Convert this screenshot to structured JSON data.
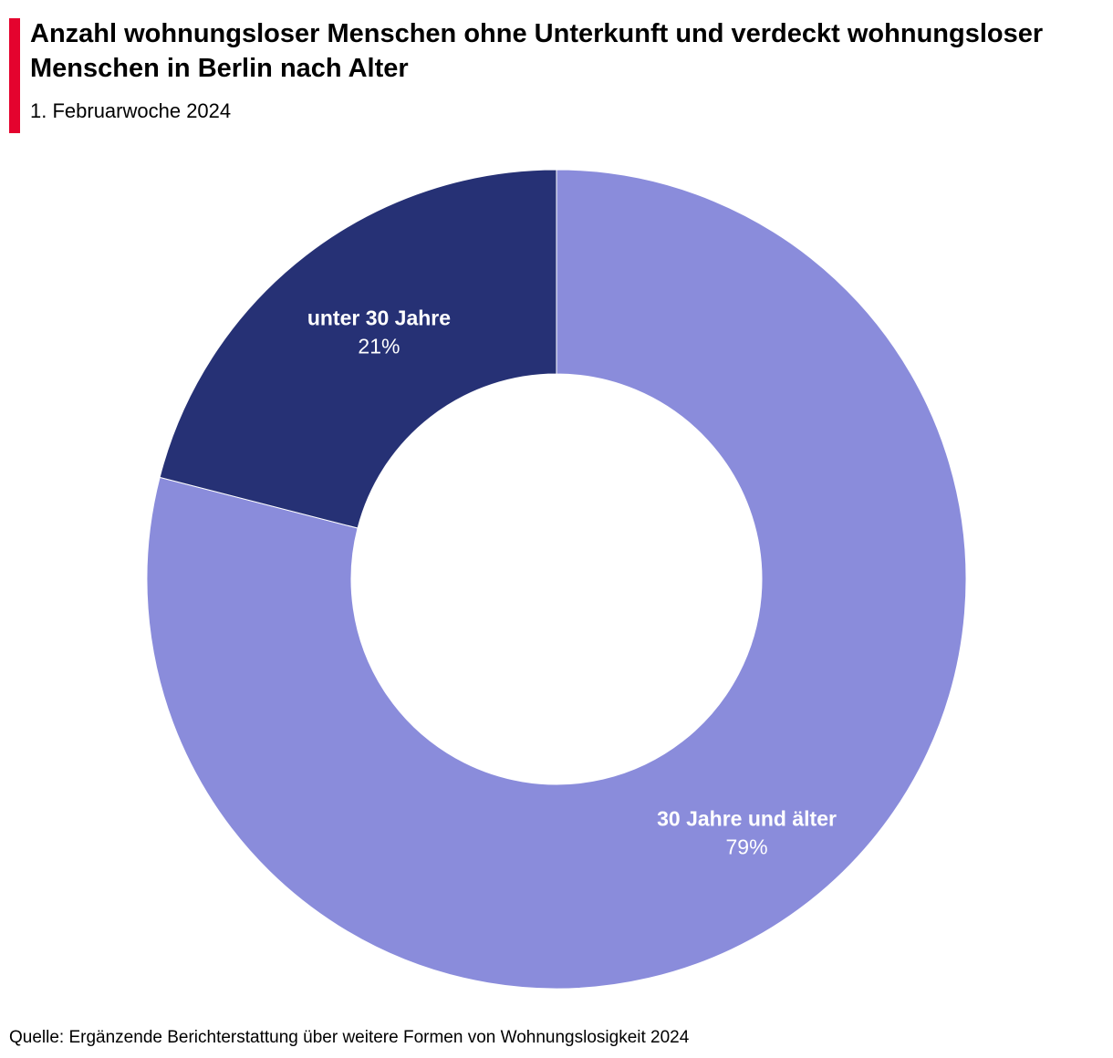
{
  "header": {
    "title": "Anzahl wohnungsloser Menschen ohne Unterkunft und verdeckt wohnungsloser Menschen in Berlin nach Alter",
    "subtitle": "1. Februarwoche 2024",
    "accent_color": "#e4032e"
  },
  "chart_data": {
    "type": "pie",
    "variant": "donut",
    "title": "Anzahl wohnungsloser Menschen ohne Unterkunft und verdeckt wohnungsloser Menschen in Berlin nach Alter",
    "subtitle": "1. Februarwoche 2024",
    "slices": [
      {
        "label": "30 Jahre und älter",
        "value": 79,
        "value_label": "79%",
        "color": "#8a8cdb"
      },
      {
        "label": "unter 30 Jahre",
        "value": 21,
        "value_label": "21%",
        "color": "#263175"
      }
    ],
    "legend": "none",
    "labels_inside": true
  },
  "footer": {
    "source": "Quelle: Ergänzende Berichterstattung über weitere Formen von Wohnungslosigkeit 2024"
  }
}
